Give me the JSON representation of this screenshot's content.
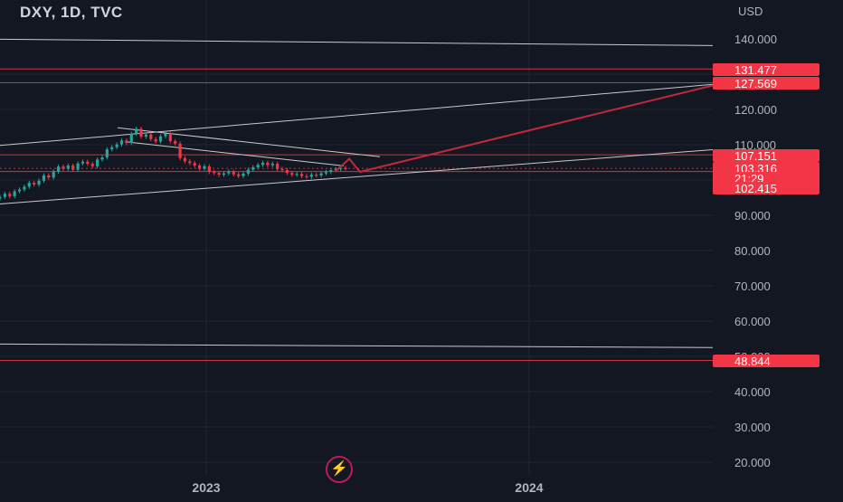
{
  "header": {
    "title": "DXY, 1D, TVC"
  },
  "axis": {
    "currency": "USD",
    "ticks": [
      "140.000",
      "120.000",
      "110.000",
      "90.000",
      "80.000",
      "70.000",
      "60.000",
      "50.000",
      "40.000",
      "30.000",
      "20.000"
    ],
    "x_ticks": [
      "2023",
      "2024"
    ]
  },
  "price_labels": [
    {
      "text": "131.477"
    },
    {
      "text": "127.569"
    },
    {
      "text": "107.151"
    },
    {
      "text": "103.316"
    },
    {
      "text": "21:29"
    },
    {
      "text": "102.415"
    },
    {
      "text": "48.844"
    }
  ],
  "colors": {
    "background": "#131722",
    "grid": "#1f2430",
    "text": "#b2b5be",
    "red": "#f23645",
    "green": "#26a69a",
    "trendline": "#c8c9cc",
    "projection": "#c2283a",
    "axis_label_bg": "#f23645"
  },
  "logo_icon": "lightning-bolt-icon",
  "chart_data": {
    "type": "line",
    "symbol": "DXY",
    "interval": "1D",
    "source": "TVC",
    "ylim": [
      17,
      146
    ],
    "x_range": [
      "2021-11",
      "2024-08"
    ],
    "x_ticks": [
      "2023",
      "2024"
    ],
    "y_ticks": [
      140,
      120,
      110,
      90,
      80,
      70,
      60,
      50,
      40,
      30,
      20
    ],
    "log_scale": false,
    "grid": true,
    "horizontal_levels": [
      131.477,
      127.569,
      107.151,
      102.415,
      48.844
    ],
    "current_price": 103.316,
    "countdown": "21:29",
    "series": [
      {
        "values": [
          95.2,
          96.1,
          95.4,
          96.8,
          97.3,
          98.1,
          99.2,
          98.7,
          99.8,
          101.3,
          100.7,
          102.4,
          103.8,
          103.2,
          104.1,
          102.9,
          104.7,
          105.2,
          104.6,
          103.9,
          105.8,
          106.4,
          108.7,
          109.3,
          110.1,
          111.2,
          110.5,
          113.1,
          114.5,
          112.3,
          112.9,
          111.6,
          110.9,
          112.4,
          113.2,
          111.0,
          110.3,
          106.2,
          105.3,
          104.8,
          104.1,
          103.2,
          103.9,
          102.3,
          102.0,
          101.5,
          101.9,
          102.4,
          101.6,
          101.1,
          101.8,
          102.9,
          103.6,
          104.3,
          104.9,
          104.2,
          104.6,
          103.1,
          102.8,
          102.0,
          101.5,
          101.7,
          101.1,
          100.9,
          101.5,
          101.3,
          101.9,
          102.3,
          102.8,
          103.1,
          103.4,
          103.3
        ]
      }
    ],
    "trendlines": [
      {
        "name": "",
        "from": [
          0.0,
          139.9
        ],
        "to": [
          1.0,
          138.1
        ]
      },
      {
        "name": "",
        "from": [
          0.0,
          109.8
        ],
        "to": [
          1.0,
          127.1
        ]
      },
      {
        "name": "",
        "from": [
          0.0,
          93.2
        ],
        "to": [
          1.0,
          108.6
        ]
      },
      {
        "name": "",
        "from": [
          0.0,
          53.5
        ],
        "to": [
          1.0,
          52.5
        ]
      }
    ],
    "projection": [
      [
        0.49,
        106.0
      ],
      [
        0.505,
        102.3
      ],
      [
        1.0,
        126.8
      ]
    ]
  }
}
